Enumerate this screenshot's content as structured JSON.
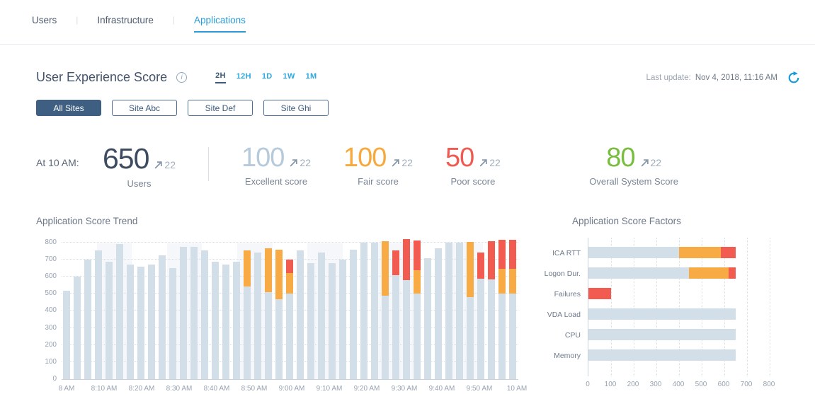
{
  "colors": {
    "accent_blue": "#2b9cd8",
    "range_blue": "#2aa7e0",
    "navy": "#3f5f82",
    "bar_blue": "#d2dfe9",
    "bar_orange": "#f8aa44",
    "bar_red": "#f15b50",
    "stat_navy": "#3d4b60",
    "excellent_blue": "#b7cadb",
    "fair_orange": "#f8a93c",
    "poor_red": "#f15a50",
    "overall_green": "#79bd3f",
    "arrow_gray": "#8695aa"
  },
  "tabs": [
    {
      "label": "Users",
      "active": false
    },
    {
      "label": "Infrastructure",
      "active": false
    },
    {
      "label": "Applications",
      "active": true
    }
  ],
  "header": {
    "title": "User Experience Score",
    "info_glyph": "i",
    "time_ranges": [
      {
        "label": "2H",
        "active": true
      },
      {
        "label": "12H",
        "active": false
      },
      {
        "label": "1D",
        "active": false
      },
      {
        "label": "1W",
        "active": false
      },
      {
        "label": "1M",
        "active": false
      }
    ],
    "last_update_label": "Last update:",
    "last_update_value": "Nov 4, 2018, 11:16 AM"
  },
  "site_filters": [
    {
      "label": "All Sites",
      "active": true
    },
    {
      "label": "Site Abc",
      "active": false
    },
    {
      "label": "Site Def",
      "active": false
    },
    {
      "label": "Site Ghi",
      "active": false
    }
  ],
  "stats": {
    "time_label": "At 10 AM:",
    "items": [
      {
        "value": "650",
        "delta": "22",
        "label": "Users",
        "color": "#3d4b60",
        "kind": "users"
      },
      {
        "value": "100",
        "delta": "22",
        "label": "Excellent score",
        "color": "#b7cadb",
        "kind": "excellent"
      },
      {
        "value": "100",
        "delta": "22",
        "label": "Fair score",
        "color": "#f8a93c",
        "kind": "fair"
      },
      {
        "value": "50",
        "delta": "22",
        "label": "Poor score",
        "color": "#f15a50",
        "kind": "poor"
      },
      {
        "value": "80",
        "delta": "22",
        "label": "Overall System Score",
        "color": "#79bd3f",
        "kind": "overall"
      }
    ]
  },
  "chart_data": [
    {
      "type": "bar",
      "stacked": true,
      "title": "Application Score Trend",
      "xlabel": "",
      "ylabel": "",
      "ylim": [
        0,
        800
      ],
      "y_ticks": [
        0,
        100,
        200,
        300,
        400,
        500,
        600,
        700,
        800
      ],
      "x_labels": [
        "8 AM",
        "8:10 AM",
        "8:20 AM",
        "8:30 AM",
        "8:40 AM",
        "8:50 AM",
        "9:00 AM",
        "9:10 AM",
        "9:20 AM",
        "9:30 AM",
        "9:40 AM",
        "9:50 AM",
        "10 AM"
      ],
      "series_names": [
        "base",
        "fair",
        "poor"
      ],
      "grid": "horizontal-dotted",
      "legend": "none",
      "bars": [
        [
          520,
          0,
          0
        ],
        [
          600,
          0,
          0
        ],
        [
          700,
          0,
          0
        ],
        [
          755,
          0,
          0
        ],
        [
          690,
          0,
          0
        ],
        [
          790,
          0,
          0
        ],
        [
          670,
          0,
          0
        ],
        [
          660,
          0,
          0
        ],
        [
          670,
          0,
          0
        ],
        [
          725,
          0,
          0
        ],
        [
          650,
          0,
          0
        ],
        [
          775,
          0,
          0
        ],
        [
          775,
          0,
          0
        ],
        [
          755,
          0,
          0
        ],
        [
          690,
          0,
          0
        ],
        [
          670,
          0,
          0
        ],
        [
          690,
          0,
          0
        ],
        [
          545,
          210,
          0
        ],
        [
          740,
          0,
          0
        ],
        [
          510,
          255,
          0
        ],
        [
          470,
          290,
          0
        ],
        [
          500,
          120,
          80
        ],
        [
          755,
          0,
          0
        ],
        [
          680,
          0,
          0
        ],
        [
          740,
          0,
          0
        ],
        [
          680,
          0,
          0
        ],
        [
          700,
          0,
          0
        ],
        [
          760,
          0,
          0
        ],
        [
          800,
          0,
          0
        ],
        [
          800,
          0,
          0
        ],
        [
          490,
          320,
          0
        ],
        [
          610,
          0,
          145
        ],
        [
          580,
          0,
          240
        ],
        [
          500,
          140,
          175
        ],
        [
          710,
          0,
          0
        ],
        [
          765,
          0,
          0
        ],
        [
          800,
          0,
          0
        ],
        [
          800,
          0,
          0
        ],
        [
          480,
          325,
          0
        ],
        [
          590,
          0,
          155
        ],
        [
          585,
          0,
          225
        ],
        [
          500,
          145,
          170
        ],
        [
          500,
          145,
          170
        ]
      ]
    },
    {
      "type": "bar",
      "orientation": "horizontal",
      "stacked": true,
      "title": "Application Score Factors",
      "xlabel": "",
      "ylabel": "",
      "xlim": [
        0,
        900
      ],
      "x_ticks": [
        0,
        100,
        200,
        300,
        400,
        500,
        600,
        700,
        800
      ],
      "categories": [
        "ICA RTT",
        "Logon Dur.",
        "Failures",
        "VDA Load",
        "CPU",
        "Memory"
      ],
      "grid": "vertical-dotted",
      "legend": "none",
      "series": [
        {
          "name": "base",
          "values": [
            400,
            445,
            0,
            650,
            650,
            650
          ]
        },
        {
          "name": "fair",
          "values": [
            185,
            175,
            0,
            0,
            0,
            0
          ]
        },
        {
          "name": "poor",
          "values": [
            65,
            30,
            100,
            0,
            0,
            0
          ]
        }
      ]
    }
  ]
}
